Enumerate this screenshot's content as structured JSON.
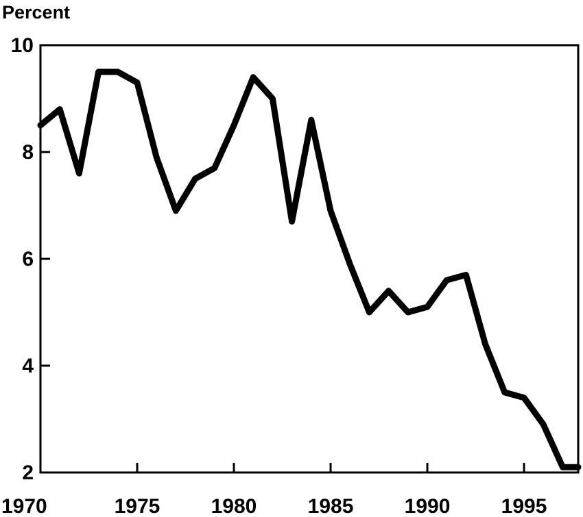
{
  "chart_data": {
    "type": "line",
    "title": "",
    "xlabel": "",
    "ylabel": "Percent",
    "xlim": [
      1970,
      1997.8
    ],
    "ylim": [
      2,
      10
    ],
    "grid": false,
    "legend": "none",
    "x_ticks": [
      1970,
      1975,
      1980,
      1985,
      1990,
      1995
    ],
    "x_tick_labels": [
      "1970",
      "1975",
      "1980",
      "1985",
      "1990",
      "1995"
    ],
    "y_ticks": [
      2,
      4,
      6,
      8,
      10
    ],
    "y_tick_labels": [
      "2",
      "4",
      "6",
      "8",
      "10"
    ],
    "series": [
      {
        "color": "#000000",
        "x": [
          1970,
          1971,
          1972,
          1973,
          1974,
          1975,
          1976,
          1977,
          1978,
          1979,
          1980,
          1981,
          1982,
          1983,
          1984,
          1985,
          1986,
          1987,
          1988,
          1989,
          1990,
          1991,
          1992,
          1993,
          1994,
          1995,
          1996,
          1997,
          1997.8
        ],
        "y": [
          8.5,
          8.8,
          7.6,
          9.5,
          9.5,
          9.3,
          7.9,
          6.9,
          7.5,
          7.7,
          8.5,
          9.4,
          9.0,
          6.7,
          8.6,
          6.9,
          5.9,
          5.0,
          5.4,
          5.0,
          5.1,
          5.6,
          5.7,
          4.4,
          3.5,
          3.4,
          2.9,
          2.1,
          2.1
        ]
      }
    ]
  }
}
